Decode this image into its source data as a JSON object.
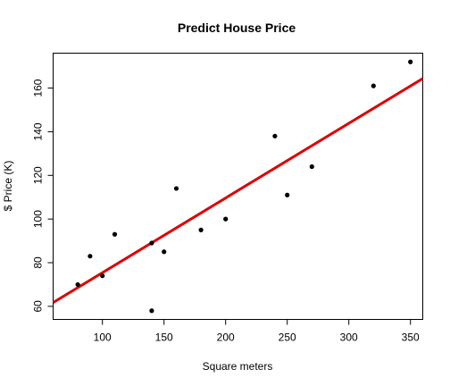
{
  "chart_data": {
    "type": "scatter",
    "title": "Predict House Price",
    "xlabel": "Square meters",
    "ylabel": "$ Price (K)",
    "xlim": [
      60,
      360
    ],
    "ylim": [
      54,
      176
    ],
    "x_ticks": [
      100,
      150,
      200,
      250,
      300,
      350
    ],
    "y_ticks": [
      60,
      80,
      100,
      120,
      140,
      160
    ],
    "grid": false,
    "legend": "none",
    "series": [
      {
        "type": "scatter",
        "color": "#000000",
        "points": [
          {
            "x": 80,
            "y": 70
          },
          {
            "x": 90,
            "y": 83
          },
          {
            "x": 100,
            "y": 74
          },
          {
            "x": 110,
            "y": 93
          },
          {
            "x": 140,
            "y": 89
          },
          {
            "x": 140,
            "y": 58
          },
          {
            "x": 150,
            "y": 85
          },
          {
            "x": 160,
            "y": 114
          },
          {
            "x": 180,
            "y": 95
          },
          {
            "x": 200,
            "y": 100
          },
          {
            "x": 240,
            "y": 138
          },
          {
            "x": 250,
            "y": 111
          },
          {
            "x": 270,
            "y": 124
          },
          {
            "x": 320,
            "y": 161
          },
          {
            "x": 350,
            "y": 172
          }
        ]
      },
      {
        "type": "regression_line",
        "color": "#e00000",
        "intercept": 41.2,
        "slope": 0.3422
      }
    ]
  }
}
